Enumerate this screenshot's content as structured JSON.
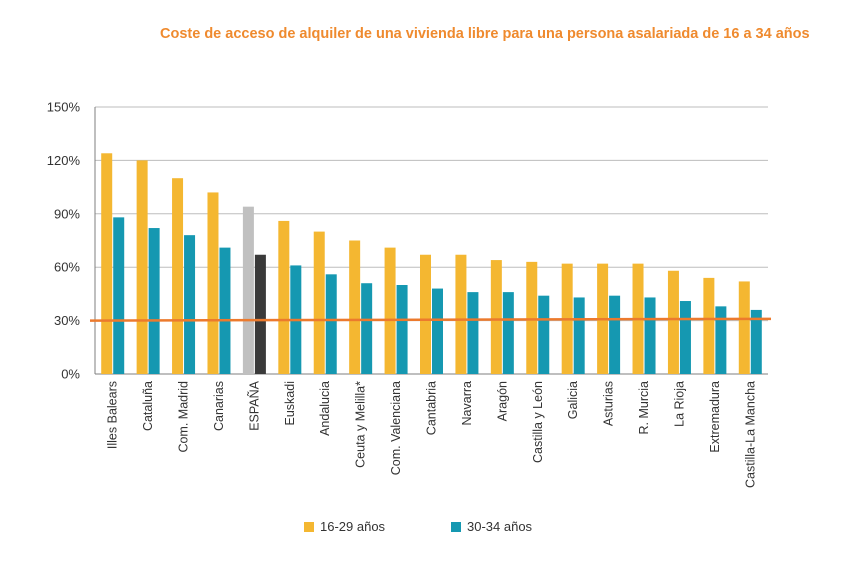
{
  "chart_data": {
    "type": "bar",
    "title": "Coste de acceso de alquiler de una vivienda libre para una persona asalariada de 16 a 34 años",
    "xlabel": "",
    "ylabel": "",
    "ylim": [
      0,
      150
    ],
    "yticks": [
      "0%",
      "30%",
      "60%",
      "90%",
      "120%",
      "150%"
    ],
    "grid": true,
    "legend_position": "bottom",
    "categories": [
      "Illes Balears",
      "Cataluña",
      "Com. Madrid",
      "Canarias",
      "ESPAÑA",
      "Euskadi",
      "Andalucia",
      "Ceuta y Melilla*",
      "Com. Valenciana",
      "Cantabria",
      "Navarra",
      "Aragón",
      "Castilla y León",
      "Galicia",
      "Asturias",
      "R. Murcia",
      "La Rioja",
      "Extremadura",
      "Castilla-La Mancha"
    ],
    "highlight_category": "ESPAÑA",
    "highlight_colors": [
      "#c0c0c0",
      "#3a3a3a"
    ],
    "series": [
      {
        "name": "16-29 años",
        "color": "#f4b731",
        "values": [
          124,
          120,
          110,
          102,
          94,
          86,
          80,
          75,
          71,
          67,
          67,
          64,
          63,
          62,
          62,
          62,
          58,
          54,
          52
        ]
      },
      {
        "name": "30-34 años",
        "color": "#1598b1",
        "values": [
          88,
          82,
          78,
          71,
          67,
          61,
          56,
          51,
          50,
          48,
          46,
          46,
          44,
          43,
          44,
          43,
          41,
          38,
          36
        ]
      }
    ],
    "reference_line": {
      "color": "#ec7a2d",
      "start": 30,
      "end": 31
    }
  }
}
